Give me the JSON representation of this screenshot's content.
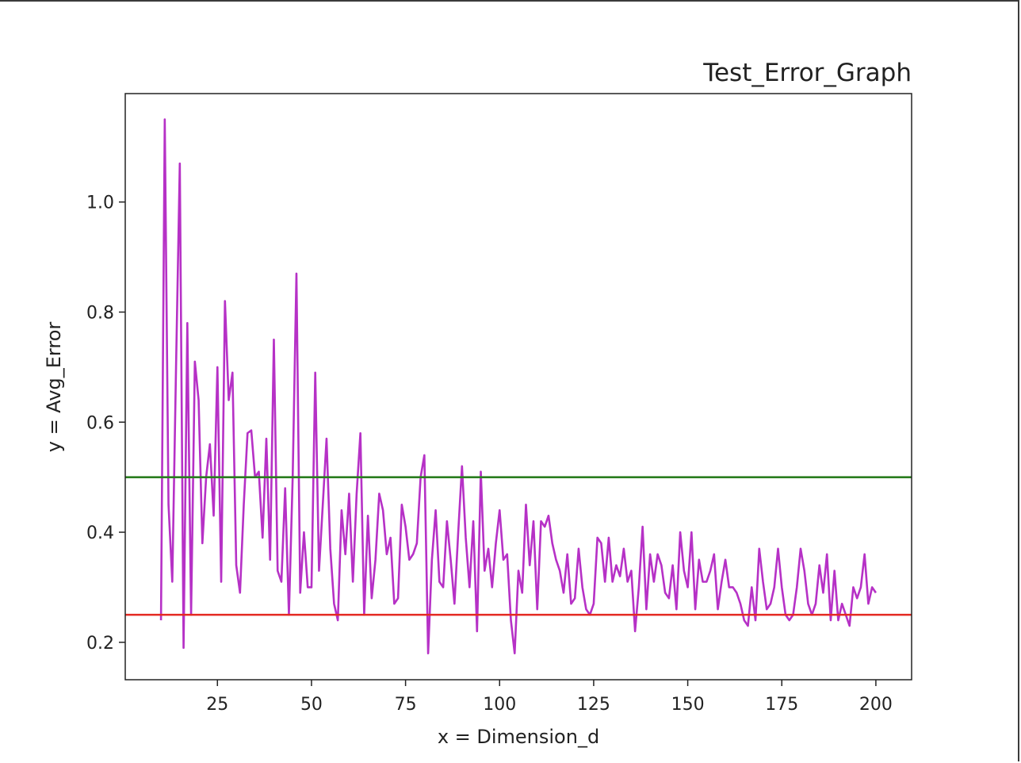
{
  "chart_data": {
    "type": "line",
    "title": "Test_Error_Graph",
    "xlabel": "x = Dimension_d",
    "ylabel": "y = Avg_Error",
    "x": [
      10,
      11,
      12,
      13,
      14,
      15,
      16,
      17,
      18,
      19,
      20,
      21,
      22,
      23,
      24,
      25,
      26,
      27,
      28,
      29,
      30,
      31,
      32,
      33,
      34,
      35,
      36,
      37,
      38,
      39,
      40,
      41,
      42,
      43,
      44,
      45,
      46,
      47,
      48,
      49,
      50,
      51,
      52,
      53,
      54,
      55,
      56,
      57,
      58,
      59,
      60,
      61,
      62,
      63,
      64,
      65,
      66,
      67,
      68,
      69,
      70,
      71,
      72,
      73,
      74,
      75,
      76,
      77,
      78,
      79,
      80,
      81,
      82,
      83,
      84,
      85,
      86,
      87,
      88,
      89,
      90,
      91,
      92,
      93,
      94,
      95,
      96,
      97,
      98,
      99,
      100,
      101,
      102,
      103,
      104,
      105,
      106,
      107,
      108,
      109,
      110,
      111,
      112,
      113,
      114,
      115,
      116,
      117,
      118,
      119,
      120,
      121,
      122,
      123,
      124,
      125,
      126,
      127,
      128,
      129,
      130,
      131,
      132,
      133,
      134,
      135,
      136,
      137,
      138,
      139,
      140,
      141,
      142,
      143,
      144,
      145,
      146,
      147,
      148,
      149,
      150,
      151,
      152,
      153,
      154,
      155,
      156,
      157,
      158,
      159,
      160,
      161,
      162,
      163,
      164,
      165,
      166,
      167,
      168,
      169,
      170,
      171,
      172,
      173,
      174,
      175,
      176,
      177,
      178,
      179,
      180,
      181,
      182,
      183,
      184,
      185,
      186,
      187,
      188,
      189,
      190,
      191,
      192,
      193,
      194,
      195,
      196,
      197,
      198,
      199,
      200
    ],
    "series": [
      {
        "color": "#b631c6",
        "values": [
          0.24,
          1.15,
          0.45,
          0.31,
          0.7,
          1.07,
          0.19,
          0.78,
          0.25,
          0.71,
          0.64,
          0.38,
          0.5,
          0.56,
          0.43,
          0.7,
          0.31,
          0.82,
          0.64,
          0.69,
          0.34,
          0.29,
          0.45,
          0.58,
          0.585,
          0.5,
          0.51,
          0.39,
          0.57,
          0.35,
          0.75,
          0.33,
          0.31,
          0.48,
          0.25,
          0.5,
          0.87,
          0.29,
          0.4,
          0.3,
          0.3,
          0.69,
          0.33,
          0.45,
          0.57,
          0.37,
          0.27,
          0.24,
          0.44,
          0.36,
          0.47,
          0.31,
          0.47,
          0.58,
          0.25,
          0.43,
          0.28,
          0.35,
          0.47,
          0.44,
          0.36,
          0.39,
          0.27,
          0.28,
          0.45,
          0.41,
          0.35,
          0.36,
          0.38,
          0.5,
          0.54,
          0.18,
          0.35,
          0.44,
          0.31,
          0.3,
          0.42,
          0.35,
          0.27,
          0.4,
          0.52,
          0.39,
          0.3,
          0.42,
          0.22,
          0.51,
          0.33,
          0.37,
          0.3,
          0.38,
          0.44,
          0.35,
          0.36,
          0.24,
          0.18,
          0.33,
          0.29,
          0.45,
          0.34,
          0.42,
          0.26,
          0.42,
          0.41,
          0.43,
          0.38,
          0.35,
          0.33,
          0.29,
          0.36,
          0.27,
          0.28,
          0.37,
          0.3,
          0.26,
          0.25,
          0.27,
          0.39,
          0.38,
          0.31,
          0.39,
          0.31,
          0.34,
          0.32,
          0.37,
          0.31,
          0.33,
          0.22,
          0.3,
          0.41,
          0.26,
          0.36,
          0.31,
          0.36,
          0.34,
          0.29,
          0.28,
          0.34,
          0.26,
          0.4,
          0.33,
          0.3,
          0.4,
          0.26,
          0.35,
          0.31,
          0.31,
          0.33,
          0.36,
          0.26,
          0.31,
          0.35,
          0.3,
          0.3,
          0.29,
          0.27,
          0.24,
          0.23,
          0.3,
          0.24,
          0.37,
          0.31,
          0.26,
          0.27,
          0.3,
          0.37,
          0.3,
          0.25,
          0.24,
          0.25,
          0.3,
          0.37,
          0.33,
          0.27,
          0.25,
          0.27,
          0.34,
          0.29,
          0.36,
          0.24,
          0.33,
          0.24,
          0.27,
          0.25,
          0.23,
          0.3,
          0.28,
          0.3,
          0.36,
          0.27,
          0.3,
          0.29
        ]
      }
    ],
    "hlines": [
      {
        "value": 0.5,
        "color": "#2a7d1f"
      },
      {
        "value": 0.25,
        "color": "#e42a22"
      }
    ],
    "xlim": [
      0.5,
      209.5
    ],
    "ylim": [
      0.132,
      1.197
    ],
    "xticks": [
      25,
      50,
      75,
      100,
      125,
      150,
      175,
      200
    ],
    "yticks": [
      0.2,
      0.4,
      0.6,
      0.8,
      {
        "value": 1,
        "label": "1.0"
      }
    ],
    "grid": false
  }
}
